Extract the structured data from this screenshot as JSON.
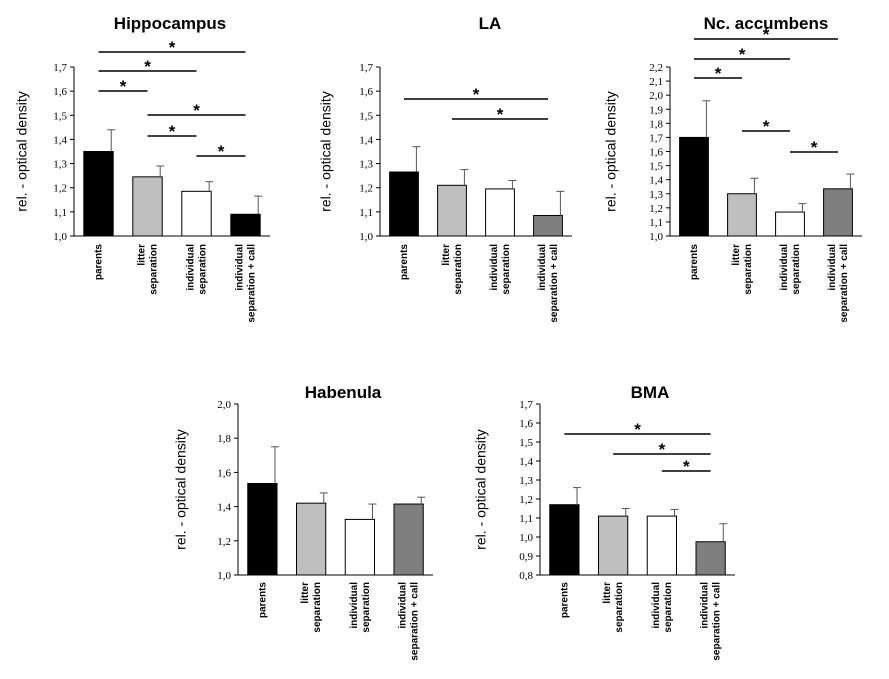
{
  "figure": {
    "star_symbol": "*",
    "fills": [
      "#000000",
      "#bfbfbf",
      "#ffffff",
      "#7f7f7f"
    ]
  },
  "chart_data": [
    {
      "type": "bar",
      "title": "Hippocampus",
      "ylabel": "rel. - optical density",
      "categories": [
        "parents",
        "litter separation",
        "individual separation",
        "individual separation + call"
      ],
      "values": [
        1.35,
        1.245,
        1.185,
        1.09
      ],
      "errors": [
        0.09,
        0.045,
        0.04,
        0.075
      ],
      "bar_fills": [
        "#000000",
        "#bfbfbf",
        "#ffffff",
        "#000000"
      ],
      "ylim": [
        1.0,
        1.7
      ],
      "ticks": [
        "1,0",
        "1,1",
        "1,2",
        "1,3",
        "1,4",
        "1,5",
        "1,6",
        "1,7"
      ],
      "significance": [
        [
          0,
          3
        ],
        [
          0,
          2
        ],
        [
          0,
          1
        ],
        [
          1,
          3
        ],
        [
          1,
          2
        ],
        [
          2,
          3
        ]
      ]
    },
    {
      "type": "bar",
      "title": "LA",
      "ylabel": "rel. - optical density",
      "categories": [
        "parents",
        "litter separation",
        "individual separation",
        "individual separation + call"
      ],
      "values": [
        1.265,
        1.21,
        1.195,
        1.085
      ],
      "errors": [
        0.105,
        0.065,
        0.035,
        0.1
      ],
      "bar_fills": [
        "#000000",
        "#bfbfbf",
        "#ffffff",
        "#7f7f7f"
      ],
      "ylim": [
        1.0,
        1.7
      ],
      "ticks": [
        "1,0",
        "1,1",
        "1,2",
        "1,3",
        "1,4",
        "1,5",
        "1,6",
        "1,7"
      ],
      "significance": [
        [
          0,
          3
        ],
        [
          1,
          3
        ]
      ]
    },
    {
      "type": "bar",
      "title": "Nc. accumbens",
      "ylabel": "rel. - optical density",
      "categories": [
        "parents",
        "litter separation",
        "individual separation",
        "individual separation + call"
      ],
      "values": [
        1.7,
        1.3,
        1.17,
        1.335
      ],
      "errors": [
        0.26,
        0.11,
        0.06,
        0.105
      ],
      "bar_fills": [
        "#000000",
        "#bfbfbf",
        "#ffffff",
        "#7f7f7f"
      ],
      "ylim": [
        1.0,
        2.2
      ],
      "ticks": [
        "1,0",
        "1,1",
        "1,2",
        "1,3",
        "1,4",
        "1,5",
        "1,6",
        "1,7",
        "1,8",
        "1,9",
        "2,0",
        "2,1",
        "2,2"
      ],
      "significance": [
        [
          0,
          3
        ],
        [
          0,
          2
        ],
        [
          0,
          1
        ],
        [
          1,
          2
        ],
        [
          2,
          3
        ]
      ]
    },
    {
      "type": "bar",
      "title": "Habenula",
      "ylabel": "rel. - optical density",
      "categories": [
        "parents",
        "litter separation",
        "individual separation",
        "individual separation + call"
      ],
      "values": [
        1.535,
        1.42,
        1.325,
        1.415
      ],
      "errors": [
        0.215,
        0.06,
        0.09,
        0.04
      ],
      "bar_fills": [
        "#000000",
        "#bfbfbf",
        "#ffffff",
        "#7f7f7f"
      ],
      "ylim": [
        1.0,
        2.0
      ],
      "ticks": [
        "1,0",
        "1,2",
        "1,4",
        "1,6",
        "1,8",
        "2,0"
      ],
      "significance": []
    },
    {
      "type": "bar",
      "title": "BMA",
      "ylabel": "rel. - optical density",
      "categories": [
        "parents",
        "litter separation",
        "individual separation",
        "individual separation + call"
      ],
      "values": [
        1.17,
        1.11,
        1.11,
        0.975
      ],
      "errors": [
        0.09,
        0.04,
        0.035,
        0.095
      ],
      "bar_fills": [
        "#000000",
        "#bfbfbf",
        "#ffffff",
        "#7f7f7f"
      ],
      "ylim": [
        0.8,
        1.7
      ],
      "ticks": [
        "0,8",
        "0,9",
        "1,0",
        "1,1",
        "1,2",
        "1,3",
        "1,4",
        "1,5",
        "1,6",
        "1,7"
      ],
      "significance": [
        [
          0,
          3
        ],
        [
          1,
          3
        ],
        [
          2,
          3
        ]
      ]
    }
  ]
}
